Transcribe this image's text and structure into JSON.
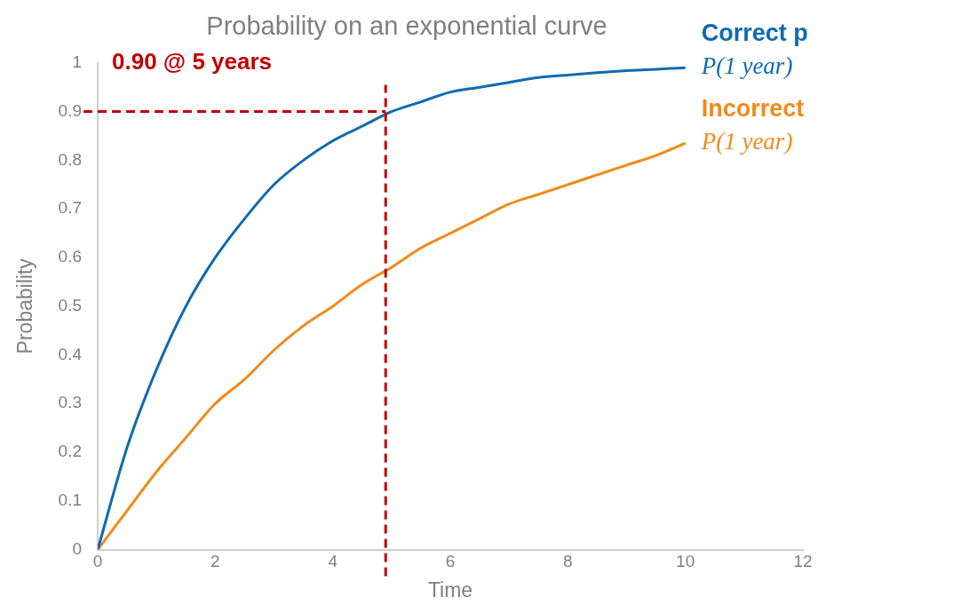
{
  "chart_data": {
    "type": "line",
    "title": "Probability on an exponential curve",
    "xlabel": "Time",
    "ylabel": "Probability",
    "xlim": [
      0,
      12
    ],
    "xticks": [
      0,
      2,
      4,
      6,
      8,
      10,
      12
    ],
    "ylim": [
      0,
      1
    ],
    "yticks": [
      0,
      0.1,
      0.2,
      0.3,
      0.4,
      0.5,
      0.6,
      0.7,
      0.8,
      0.9,
      1
    ],
    "grid": false,
    "x": [
      0,
      0.5,
      1,
      1.5,
      2,
      2.5,
      3,
      3.5,
      4,
      4.5,
      5,
      5.5,
      6,
      6.5,
      7,
      7.5,
      8,
      8.5,
      9,
      9.5,
      10
    ],
    "series": [
      {
        "name": "Correct p",
        "color": "#0e6bb0",
        "values": [
          0,
          0.21,
          0.37,
          0.5,
          0.6,
          0.68,
          0.75,
          0.8,
          0.84,
          0.87,
          0.9,
          0.92,
          0.94,
          0.95,
          0.96,
          0.97,
          0.975,
          0.98,
          0.984,
          0.987,
          0.99
        ]
      },
      {
        "name": "Incorrect",
        "color": "#f28a1a",
        "values": [
          0,
          0.08,
          0.16,
          0.23,
          0.3,
          0.35,
          0.41,
          0.46,
          0.5,
          0.545,
          0.58,
          0.62,
          0.65,
          0.68,
          0.71,
          0.73,
          0.75,
          0.77,
          0.79,
          0.81,
          0.835
        ]
      }
    ],
    "ref_lines": [
      {
        "axis": "y",
        "value": 0.9,
        "color": "#c00000",
        "line_style": "dashed"
      },
      {
        "axis": "x",
        "value": 4.9,
        "color": "#c00000",
        "line_style": "dashed",
        "label": "0.90 @ 5 years"
      }
    ],
    "annotations": [
      "P(1 year)",
      "P(1 year)"
    ]
  }
}
